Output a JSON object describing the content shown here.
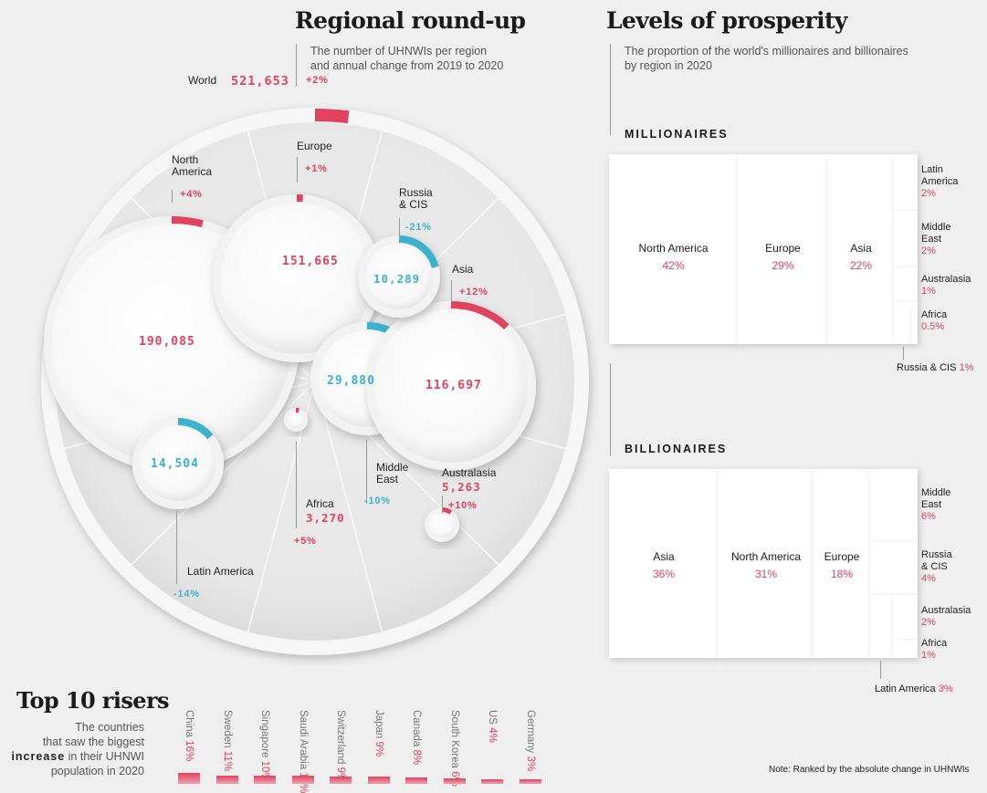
{
  "colors": {
    "positive": "#e0435e",
    "negative": "#3cb2cd"
  },
  "left": {
    "title": "Regional round-up",
    "subtitle_1": "The number of UHNWIs per region",
    "subtitle_2": "and annual change from 2019 to 2020"
  },
  "right": {
    "title": "Levels of prosperity",
    "subtitle_1": "The proportion of the world's millionaires and billionaires",
    "subtitle_2": "by region in 2020"
  },
  "risers": {
    "title": "Top 10 risers",
    "desc_1": "The countries",
    "desc_2": "that saw the biggest",
    "desc_bold": "increase",
    "desc_3": "in their UHNWI",
    "desc_4": "population in 2020"
  },
  "note": "Note: Ranked by the absolute change in UHNWIs",
  "chart_data": [
    {
      "type": "bubble",
      "title": "Regional round-up",
      "world": {
        "label": "World",
        "value": "521,653",
        "change": "+2%"
      },
      "regions": [
        {
          "name": "North America",
          "name_1": "North",
          "name_2": "America",
          "value": "190,085",
          "change": "+4%",
          "change_pct": 4
        },
        {
          "name": "Europe",
          "value": "151,665",
          "change": "+1%",
          "change_pct": 1
        },
        {
          "name": "Asia",
          "value": "116,697",
          "change": "+12%",
          "change_pct": 12
        },
        {
          "name": "Middle East",
          "name_1": "Middle",
          "name_2": "East",
          "value": "29,880",
          "change": "-10%",
          "change_pct": -10
        },
        {
          "name": "Latin America",
          "value": "14,504",
          "change": "-14%",
          "change_pct": -14
        },
        {
          "name": "Russia & CIS",
          "name_1": "Russia",
          "name_2": "& CIS",
          "value": "10,289",
          "change": "-21%",
          "change_pct": -21
        },
        {
          "name": "Australasia",
          "value": "5,263",
          "change": "+10%",
          "change_pct": 10
        },
        {
          "name": "Africa",
          "value": "3,270",
          "change": "+5%",
          "change_pct": 5
        }
      ]
    },
    {
      "type": "treemap",
      "title": "MILLIONAIRES",
      "main": [
        {
          "name": "North America",
          "value": "42%"
        },
        {
          "name": "Europe",
          "value": "29%"
        },
        {
          "name": "Asia",
          "value": "22%"
        }
      ],
      "small": [
        {
          "name_1": "Latin",
          "name_2": "America",
          "value": "2%"
        },
        {
          "name_1": "Middle",
          "name_2": "East",
          "value": "2%"
        },
        {
          "name_1": "Australasia",
          "name_2": "",
          "value": "1%"
        },
        {
          "name_1": "Africa",
          "name_2": "",
          "value": "0.5%"
        }
      ],
      "outside": {
        "name": "Russia & CIS",
        "value": "1%"
      }
    },
    {
      "type": "treemap",
      "title": "BILLIONAIRES",
      "main": [
        {
          "name": "Asia",
          "value": "36%"
        },
        {
          "name": "North America",
          "value": "31%"
        },
        {
          "name": "Europe",
          "value": "18%"
        }
      ],
      "small": [
        {
          "name_1": "Middle",
          "name_2": "East",
          "value": "6%"
        },
        {
          "name_1": "Russia",
          "name_2": "& CIS",
          "value": "4%"
        },
        {
          "name_1": "Australasia",
          "name_2": "",
          "value": "2%"
        },
        {
          "name_1": "Africa",
          "name_2": "",
          "value": "1%"
        }
      ],
      "outside": {
        "name": "Latin America",
        "value": "3%"
      }
    },
    {
      "type": "bar",
      "title": "Top 10 risers",
      "categories": [
        "China",
        "Sweden",
        "Singapore",
        "Saudi Arabia",
        "Switzerland",
        "Japan",
        "Canada",
        "South Korea",
        "US",
        "Germany"
      ],
      "labels": [
        "16%",
        "11%",
        "10%",
        "10%",
        "9%",
        "9%",
        "8%",
        "6%",
        "4%",
        "3%"
      ],
      "values": [
        16,
        11,
        10,
        10,
        9,
        9,
        8,
        6,
        4,
        3
      ]
    }
  ]
}
